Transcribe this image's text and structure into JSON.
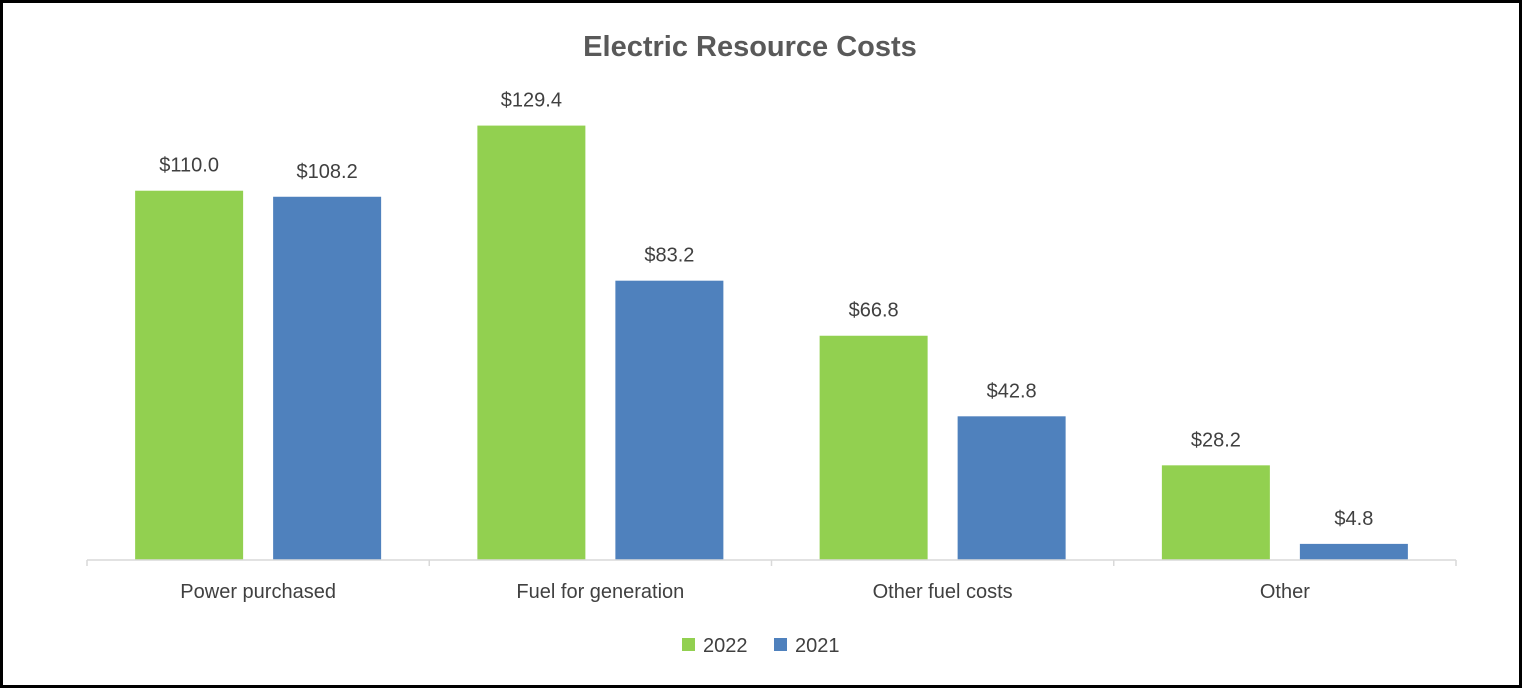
{
  "chart_data": {
    "type": "bar",
    "title": "Electric Resource Costs",
    "categories": [
      "Power purchased",
      "Fuel for generation",
      "Other fuel costs",
      "Other"
    ],
    "series": [
      {
        "name": "2022",
        "color": "#92d050",
        "values": [
          110.0,
          129.4,
          66.8,
          28.2
        ],
        "labels": [
          "$110.0",
          "$129.4",
          "$66.8",
          "$28.2"
        ]
      },
      {
        "name": "2021",
        "color": "#4f81bd",
        "values": [
          108.2,
          83.2,
          42.8,
          4.8
        ],
        "labels": [
          "$108.2",
          "$83.2",
          "$42.8",
          "$4.8"
        ]
      }
    ],
    "xlabel": "",
    "ylabel": "",
    "ylim": [
      0,
      140
    ],
    "grid": false,
    "legend": "bottom",
    "axis_color": "#d9d9d9"
  }
}
